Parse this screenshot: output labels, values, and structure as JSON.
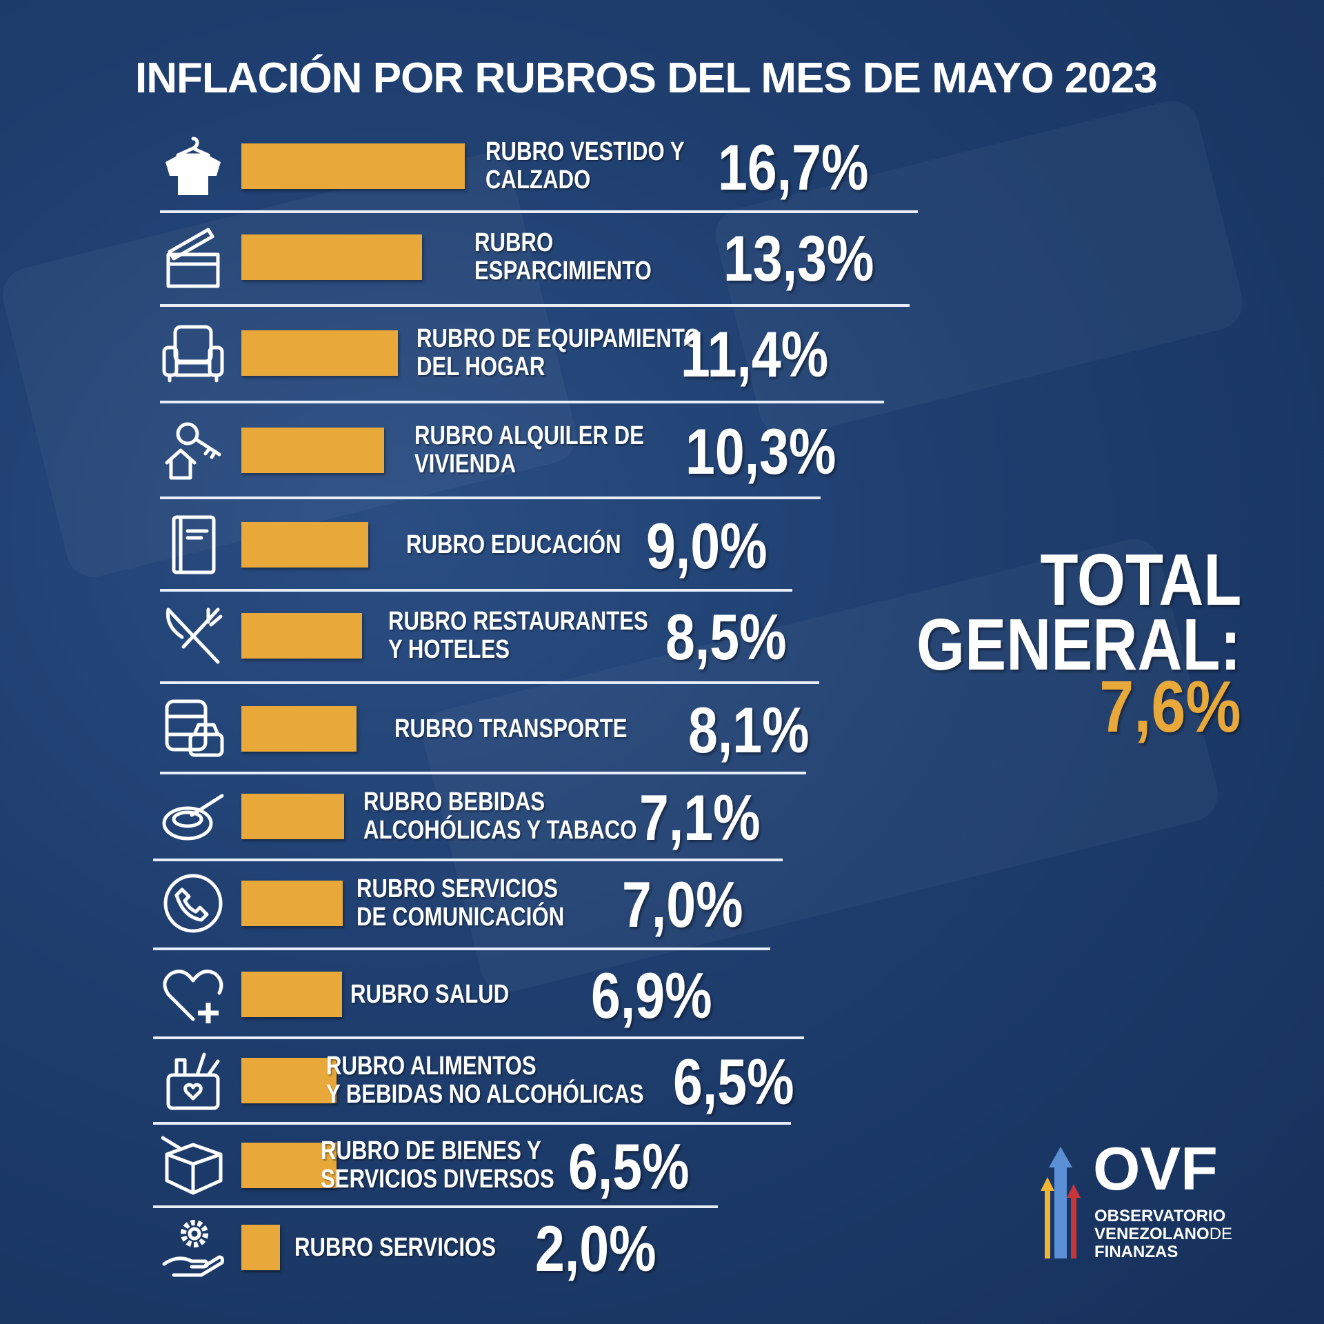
{
  "title": "INFLACIÓN POR RUBROS DEL MES DE MAYO 2023",
  "colors": {
    "bar": "#e8a93a",
    "background": "#1f3f70",
    "accent": "#e8a93a"
  },
  "total": {
    "line1": "TOTAL",
    "line2": "GENERAL:",
    "value": "7,6%"
  },
  "logo": {
    "acronym": "OVF",
    "line1": "OBSERVATORIO",
    "line2a": "VENEZOLANO",
    "line2b": "DE",
    "line3": "FINANZAS"
  },
  "chart_data": {
    "type": "bar",
    "orientation": "horizontal",
    "title": "INFLACIÓN POR RUBROS DEL MES DE MAYO 2023",
    "unit": "%",
    "categories": [
      {
        "line1": "RUBRO VESTIDO Y",
        "line2": "CALZADO",
        "icon": "shirt-icon",
        "value": 16.7,
        "label": "16,7%"
      },
      {
        "line1": "RUBRO",
        "line2": "ESPARCIMIENTO",
        "icon": "clapperboard-icon",
        "value": 13.3,
        "label": "13,3%"
      },
      {
        "line1": "RUBRO DE EQUIPAMIENTO",
        "line2": "DEL HOGAR",
        "icon": "armchair-icon",
        "value": 11.4,
        "label": "11,4%"
      },
      {
        "line1": "RUBRO ALQUILER DE",
        "line2": "VIVIENDA",
        "icon": "house-key-icon",
        "value": 10.3,
        "label": "10,3%"
      },
      {
        "line1": "RUBRO EDUCACIÓN",
        "line2": "",
        "icon": "book-icon",
        "value": 9.0,
        "label": "9,0%"
      },
      {
        "line1": "RUBRO RESTAURANTES",
        "line2": "Y HOTELES",
        "icon": "fork-knife-icon",
        "value": 8.5,
        "label": "8,5%"
      },
      {
        "line1": "RUBRO TRANSPORTE",
        "line2": "",
        "icon": "bus-car-icon",
        "value": 8.1,
        "label": "8,1%"
      },
      {
        "line1": "RUBRO BEBIDAS",
        "line2": "ALCOHÓLICAS Y TABACO",
        "icon": "ashtray-icon",
        "value": 7.1,
        "label": "7,1%"
      },
      {
        "line1": "RUBRO SERVICIOS",
        "line2": "DE COMUNICACIÓN",
        "icon": "phone-icon",
        "value": 7.0,
        "label": "7,0%"
      },
      {
        "line1": "RUBRO SALUD",
        "line2": "",
        "icon": "heart-plus-icon",
        "value": 6.9,
        "label": "6,9%"
      },
      {
        "line1": "RUBRO ALIMENTOS",
        "line2": "Y BEBIDAS NO ALCOHÓLICAS",
        "icon": "grocery-basket-icon",
        "value": 6.5,
        "label": "6,5%"
      },
      {
        "line1": "RUBRO DE BIENES Y",
        "line2": "SERVICIOS DIVERSOS",
        "icon": "box-icon",
        "value": 6.5,
        "label": "6,5%"
      },
      {
        "line1": "RUBRO SERVICIOS",
        "line2": "",
        "icon": "gear-hand-icon",
        "value": 2.0,
        "label": "2,0%"
      }
    ]
  }
}
